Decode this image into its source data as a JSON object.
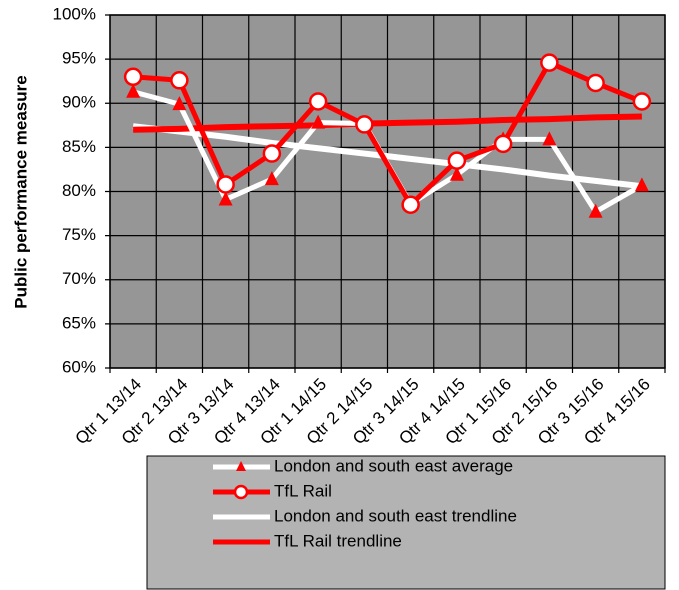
{
  "chart_data": {
    "type": "line",
    "y_label": "Public performance measure",
    "categories": [
      "Qtr 1 13/14",
      "Qtr 2 13/14",
      "Qtr 3 13/14",
      "Qtr 4 13/14",
      "Qtr 1 14/15",
      "Qtr 2 14/15",
      "Qtr 3 14/15",
      "Qtr 4 14/15",
      "Qtr 1 15/16",
      "Qtr 2 15/16",
      "Qtr 3 15/16",
      "Qtr 4 15/16"
    ],
    "series": [
      {
        "name": "London and south east average",
        "color": "#ffffff",
        "marker": "triangle",
        "marker_color": "#ff0000",
        "values": [
          91.3,
          89.9,
          79.1,
          81.4,
          87.8,
          87.7,
          78.6,
          81.9,
          85.9,
          85.9,
          77.7,
          80.7
        ]
      },
      {
        "name": "TfL Rail",
        "color": "#ff0000",
        "marker": "circle",
        "marker_color": "#ffffff",
        "values": [
          93.0,
          92.6,
          80.8,
          84.3,
          90.2,
          87.6,
          78.5,
          83.5,
          85.4,
          94.6,
          92.3,
          90.2
        ]
      },
      {
        "name": "London and south east trendline",
        "color": "#ffffff",
        "values": [
          87.4,
          86.8,
          86.2,
          85.5,
          84.9,
          84.3,
          83.7,
          83.1,
          82.5,
          81.8,
          81.2,
          80.6
        ]
      },
      {
        "name": "TfL Rail trendline",
        "color": "#ff0000",
        "values": [
          87.0,
          87.1,
          87.3,
          87.4,
          87.5,
          87.7,
          87.8,
          87.9,
          88.1,
          88.2,
          88.4,
          88.5
        ]
      }
    ],
    "ylim": [
      60,
      100
    ],
    "yticks": [
      {
        "value": 60,
        "label": "60%"
      },
      {
        "value": 65,
        "label": "65%"
      },
      {
        "value": 70,
        "label": "70%"
      },
      {
        "value": 75,
        "label": "75%"
      },
      {
        "value": 80,
        "label": "80%"
      },
      {
        "value": 85,
        "label": "85%"
      },
      {
        "value": 90,
        "label": "90%"
      },
      {
        "value": 95,
        "label": "95%"
      },
      {
        "value": 100,
        "label": "100%"
      }
    ],
    "grid": true,
    "plot_background": "#969696",
    "legend_position": "bottom"
  }
}
